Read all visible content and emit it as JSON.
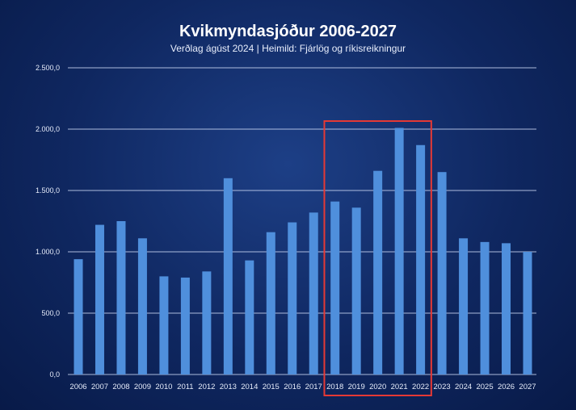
{
  "chart_data": {
    "type": "bar",
    "title": "Kvikmyndasjóður 2006-2027",
    "subtitle": "Verðlag ágúst 2024  |  Heimild: Fjárlög og ríkisreikningur",
    "categories": [
      "2006",
      "2007",
      "2008",
      "2009",
      "2010",
      "2011",
      "2012",
      "2013",
      "2014",
      "2015",
      "2016",
      "2017",
      "2018",
      "2019",
      "2020",
      "2021",
      "2022",
      "2023",
      "2024",
      "2025",
      "2026",
      "2027"
    ],
    "values": [
      940,
      1220,
      1250,
      1110,
      800,
      790,
      840,
      1600,
      930,
      1160,
      1240,
      1320,
      1410,
      1360,
      1660,
      2010,
      1870,
      1650,
      1110,
      1080,
      1070,
      1000
    ],
    "ylim": [
      0,
      2500
    ],
    "yticks": [
      0,
      500,
      1000,
      1500,
      2000,
      2500
    ],
    "ytick_labels": [
      "0,0",
      "500,0",
      "1.000,0",
      "1.500,0",
      "2.000,0",
      "2.500,0"
    ],
    "grid": true,
    "highlight": {
      "from": "2018",
      "to": "2022",
      "color": "#e53935"
    },
    "colors": {
      "bar": "#4f8fdc",
      "grid": "#c9d6f2",
      "text": "#ffffff"
    }
  }
}
